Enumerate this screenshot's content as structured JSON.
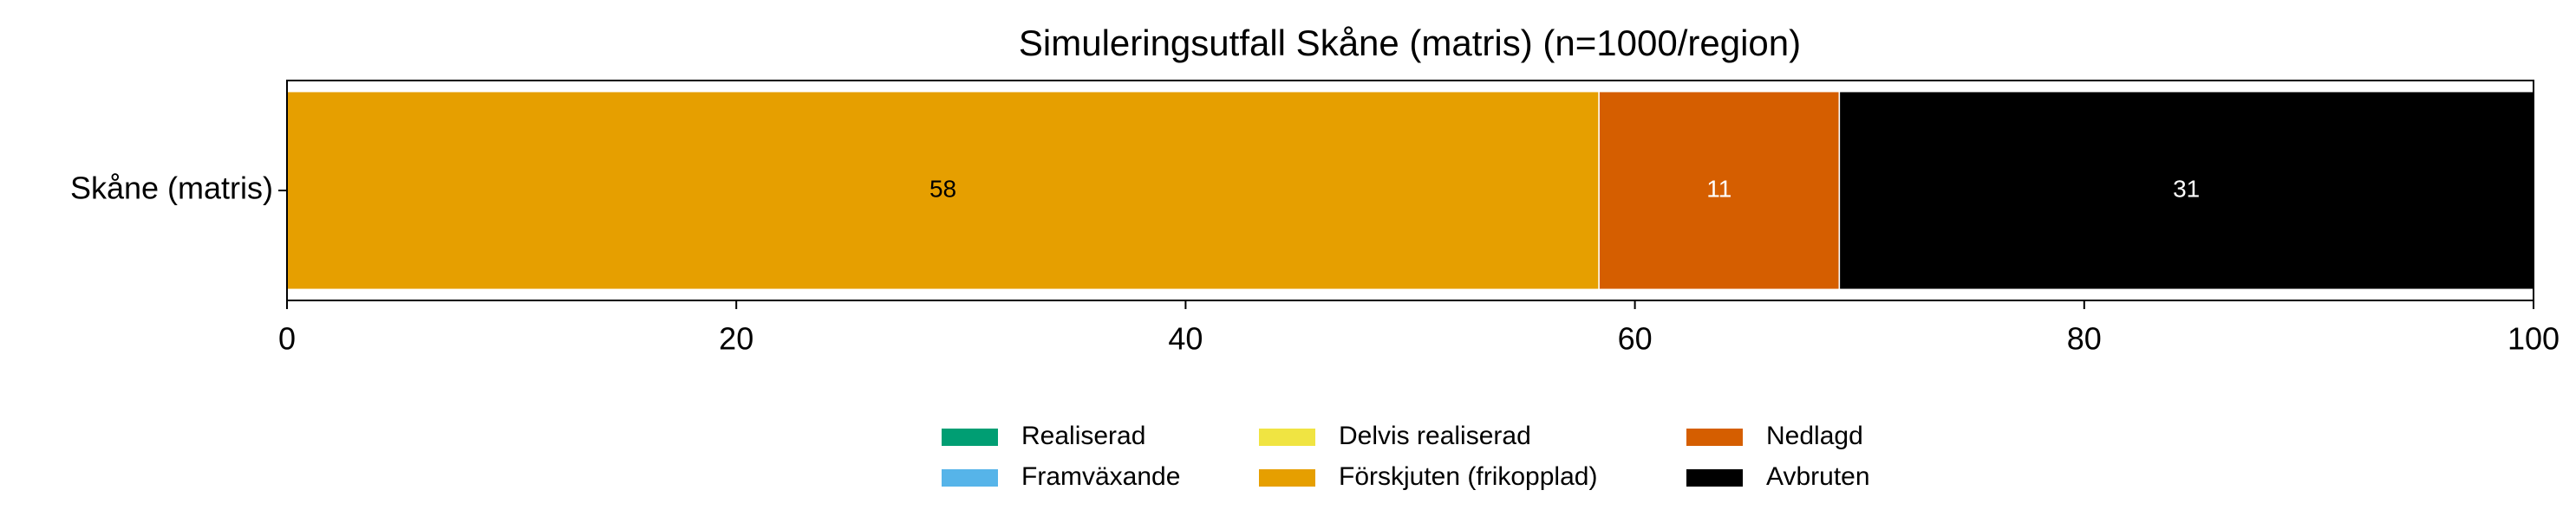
{
  "chart_data": {
    "type": "stacked_barh",
    "title": "Simuleringsutfall Skåne (matris) (n=1000/region)",
    "categories": [
      "Skåne (matris)"
    ],
    "series": [
      {
        "name": "Realiserad",
        "color": "#009e73",
        "values": [
          0
        ]
      },
      {
        "name": "Framväxande",
        "color": "#56b4e9",
        "values": [
          0
        ]
      },
      {
        "name": "Delvis realiserad",
        "color": "#f0e442",
        "values": [
          0
        ]
      },
      {
        "name": "Förskjuten (frikopplad)",
        "color": "#e69f00",
        "values": [
          58.4
        ],
        "value_labels": [
          "58"
        ]
      },
      {
        "name": "Nedlagd",
        "color": "#d55e00",
        "values": [
          10.7
        ],
        "value_labels": [
          "11"
        ]
      },
      {
        "name": "Avbruten",
        "color": "#000000",
        "values": [
          30.9
        ],
        "value_labels": [
          "31"
        ]
      }
    ],
    "xlim": [
      0,
      100
    ],
    "xticks": [
      0,
      20,
      40,
      60,
      80,
      100
    ],
    "legend": "bottom"
  }
}
